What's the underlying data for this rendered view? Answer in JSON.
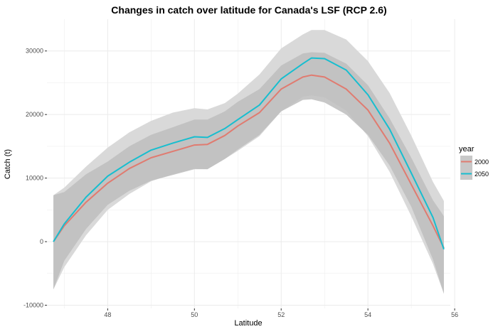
{
  "chart_data": {
    "type": "line",
    "title": "Changes in catch over latitude for Canada's LSF (RCP 2.6)",
    "xlabel": "Latitude",
    "ylabel": "Catch (t)",
    "xlim": [
      46.6,
      55.9
    ],
    "ylim": [
      -10500,
      35000
    ],
    "x_ticks": [
      48,
      50,
      52,
      54,
      56
    ],
    "y_ticks": [
      -10000,
      0,
      10000,
      20000,
      30000
    ],
    "x_tick_labels": [
      "48",
      "50",
      "52",
      "54",
      "56"
    ],
    "y_tick_labels": [
      "-10000",
      "0",
      "10000",
      "20000",
      "30000"
    ],
    "grid": true,
    "legend": {
      "title": "year",
      "position": "right",
      "labels": [
        "2000",
        "2050"
      ]
    },
    "background_color": "#ffffff",
    "grid_color": "#ebebeb",
    "band_2050_color": "#d9d9d9",
    "band_2000_color": "#bdbdbd",
    "series": [
      {
        "name": "2000",
        "color": "#e07b70",
        "x": [
          46.75,
          47.0,
          47.5,
          48.0,
          48.5,
          49.0,
          49.5,
          50.0,
          50.3,
          50.7,
          51.0,
          51.5,
          52.0,
          52.5,
          52.7,
          53.0,
          53.5,
          54.0,
          54.5,
          55.0,
          55.5,
          55.75
        ],
        "y": [
          0,
          2500,
          6200,
          9200,
          11500,
          13200,
          14200,
          15200,
          15300,
          16700,
          18200,
          20300,
          24000,
          25900,
          26200,
          25900,
          24000,
          20700,
          15500,
          9000,
          2500,
          -1000
        ],
        "lower": [
          -7500,
          -3000,
          2000,
          5800,
          8000,
          9600,
          10500,
          11400,
          11400,
          13000,
          14500,
          16800,
          20500,
          22300,
          22400,
          21900,
          20000,
          16800,
          12000,
          5500,
          -2800,
          -8200
        ],
        "upper": [
          7300,
          7800,
          10600,
          12600,
          15000,
          16800,
          18000,
          19200,
          19200,
          20500,
          22000,
          24000,
          27700,
          29600,
          29800,
          29700,
          28000,
          24600,
          19400,
          13200,
          6500,
          4000
        ]
      },
      {
        "name": "2050",
        "color": "#17becf",
        "x": [
          46.75,
          47.0,
          47.5,
          48.0,
          48.5,
          49.0,
          49.5,
          50.0,
          50.3,
          50.7,
          51.0,
          51.5,
          52.0,
          52.5,
          52.7,
          53.0,
          53.5,
          54.0,
          54.5,
          55.0,
          55.5,
          55.75
        ],
        "y": [
          0,
          2800,
          7000,
          10300,
          12500,
          14400,
          15500,
          16500,
          16400,
          17800,
          19200,
          21500,
          25600,
          28000,
          28900,
          28800,
          27000,
          23100,
          17700,
          10800,
          3800,
          -1200
        ],
        "lower": [
          -7500,
          -4000,
          1000,
          5000,
          7500,
          9500,
          10600,
          11500,
          11400,
          13000,
          14300,
          16600,
          20500,
          22800,
          23000,
          22700,
          20600,
          16600,
          11000,
          4000,
          -3500,
          -8200
        ],
        "upper": [
          7300,
          8500,
          11800,
          14800,
          17200,
          19000,
          20300,
          21000,
          20800,
          21800,
          23300,
          26300,
          30400,
          32600,
          33300,
          33300,
          31800,
          28400,
          23400,
          16700,
          9400,
          6400
        ]
      }
    ]
  }
}
